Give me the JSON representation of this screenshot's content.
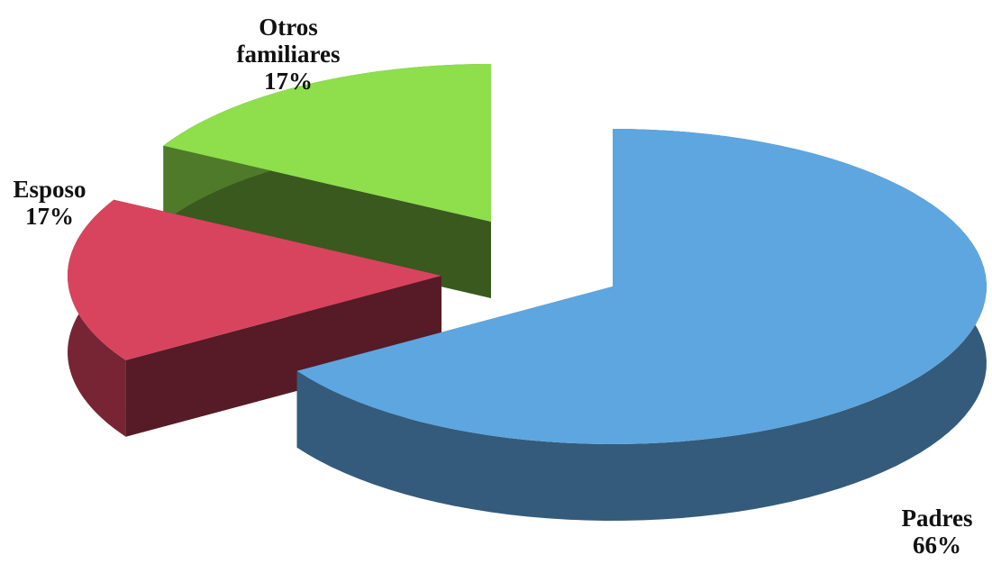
{
  "chart_data": {
    "type": "pie",
    "categories": [
      "Padres",
      "Esposo",
      "Otros familiares"
    ],
    "values": [
      66,
      17,
      17
    ],
    "value_labels": [
      "66%",
      "17%",
      "17%"
    ],
    "colors": [
      "#5ea6e0",
      "#d8445e",
      "#8fde4c"
    ]
  }
}
